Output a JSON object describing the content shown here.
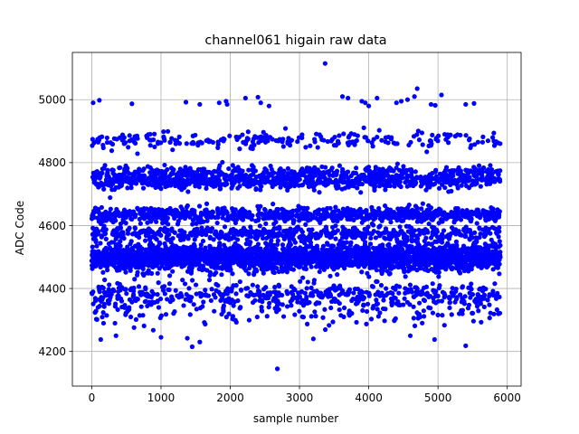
{
  "chart_data": {
    "type": "scatter",
    "title": "channel061 higain raw data",
    "xlabel": "sample number",
    "ylabel": "ADC Code",
    "xlim": [
      -280,
      6200
    ],
    "ylim": [
      4090,
      5150
    ],
    "xticks": [
      0,
      1000,
      2000,
      3000,
      4000,
      5000,
      6000
    ],
    "yticks": [
      4200,
      4400,
      4600,
      4800,
      5000
    ],
    "xtick_labels": [
      "0",
      "1000",
      "2000",
      "3000",
      "4000",
      "5000",
      "6000"
    ],
    "ytick_labels": [
      "4200",
      "4400",
      "4600",
      "4800",
      "5000"
    ],
    "grid": true,
    "marker_color": "#0000ff",
    "series": [
      {
        "sample_count": 5900,
        "x_range": [
          0,
          5900
        ],
        "bands": [
          {
            "center": 4500,
            "spread": 22,
            "fraction": 0.42
          },
          {
            "center": 4575,
            "spread": 12,
            "fraction": 0.09
          },
          {
            "center": 4635,
            "spread": 12,
            "fraction": 0.14
          },
          {
            "center": 4745,
            "spread": 14,
            "fraction": 0.15
          },
          {
            "center": 4770,
            "spread": 10,
            "fraction": 0.05
          },
          {
            "center": 4870,
            "spread": 14,
            "fraction": 0.04
          },
          {
            "center": 4380,
            "spread": 20,
            "fraction": 0.08
          },
          {
            "center": 4330,
            "spread": 25,
            "fraction": 0.03
          }
        ],
        "outliers": [
          {
            "x": 20,
            "y": 4990
          },
          {
            "x": 110,
            "y": 4998
          },
          {
            "x": 580,
            "y": 4987
          },
          {
            "x": 1360,
            "y": 4992
          },
          {
            "x": 1560,
            "y": 4985
          },
          {
            "x": 1840,
            "y": 4990
          },
          {
            "x": 1940,
            "y": 4995
          },
          {
            "x": 1955,
            "y": 4985
          },
          {
            "x": 2220,
            "y": 5005
          },
          {
            "x": 2400,
            "y": 5008
          },
          {
            "x": 2440,
            "y": 4990
          },
          {
            "x": 2560,
            "y": 4980
          },
          {
            "x": 3370,
            "y": 5115
          },
          {
            "x": 3620,
            "y": 5010
          },
          {
            "x": 3700,
            "y": 5005
          },
          {
            "x": 3900,
            "y": 4995
          },
          {
            "x": 3950,
            "y": 4990
          },
          {
            "x": 4000,
            "y": 4980
          },
          {
            "x": 4120,
            "y": 5005
          },
          {
            "x": 4400,
            "y": 4990
          },
          {
            "x": 4470,
            "y": 4995
          },
          {
            "x": 4560,
            "y": 5000
          },
          {
            "x": 4660,
            "y": 5010
          },
          {
            "x": 4700,
            "y": 5035
          },
          {
            "x": 4900,
            "y": 4985
          },
          {
            "x": 4960,
            "y": 4982
          },
          {
            "x": 5050,
            "y": 5015
          },
          {
            "x": 5400,
            "y": 4985
          },
          {
            "x": 5520,
            "y": 4988
          },
          {
            "x": 2680,
            "y": 4145
          },
          {
            "x": 1450,
            "y": 4215
          },
          {
            "x": 5400,
            "y": 4218
          },
          {
            "x": 130,
            "y": 4238
          },
          {
            "x": 3200,
            "y": 4240
          },
          {
            "x": 1000,
            "y": 4245
          },
          {
            "x": 1380,
            "y": 4242
          },
          {
            "x": 1560,
            "y": 4230
          },
          {
            "x": 4600,
            "y": 4250
          },
          {
            "x": 4950,
            "y": 4238
          },
          {
            "x": 350,
            "y": 4250
          }
        ]
      }
    ]
  }
}
